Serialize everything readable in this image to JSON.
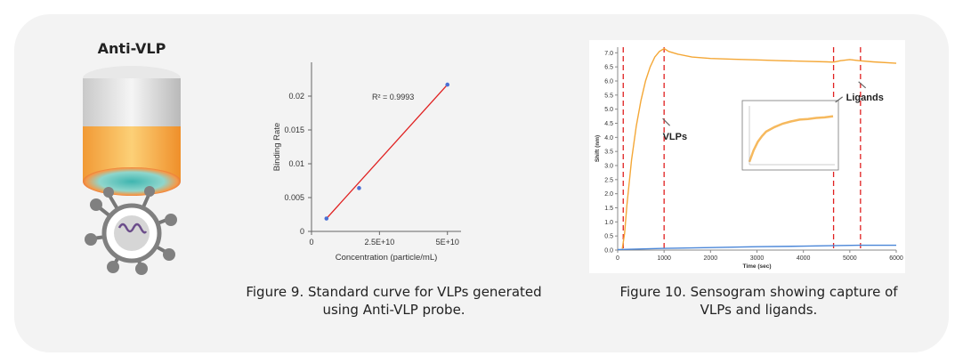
{
  "probe": {
    "title": "Anti-VLP"
  },
  "figure9": {
    "caption_line1": "Figure 9. Standard curve for VLPs generated",
    "caption_line2": "using Anti-VLP probe."
  },
  "figure10": {
    "caption_line1": "Figure 10. Sensogram showing capture of",
    "caption_line2": "VLPs and ligands."
  },
  "chart_data": [
    {
      "type": "scatter",
      "title": "",
      "xlabel": "Concentration (particle/mL)",
      "ylabel": "Binding Rate",
      "xlim": [
        0,
        55000000000
      ],
      "ylim": [
        0,
        0.025
      ],
      "x_ticks": [
        {
          "value": 0,
          "label": "0"
        },
        {
          "value": 25000000000,
          "label": "2.5E+10"
        },
        {
          "value": 50000000000,
          "label": "5E+10"
        }
      ],
      "y_ticks": [
        {
          "value": 0,
          "label": "0"
        },
        {
          "value": 0.005,
          "label": "0.005"
        },
        {
          "value": 0.01,
          "label": "0.01"
        },
        {
          "value": 0.015,
          "label": "0.015"
        },
        {
          "value": 0.02,
          "label": "0.02"
        }
      ],
      "points": [
        {
          "x": 5500000000,
          "y": 0.0019
        },
        {
          "x": 17500000000,
          "y": 0.0064
        },
        {
          "x": 50000000000,
          "y": 0.0217
        }
      ],
      "fit": {
        "x": [
          5500000000,
          50000000000
        ],
        "y": [
          0.0019,
          0.0217
        ],
        "color": "#e02020"
      },
      "annotation": "R² = 0.9993",
      "point_color": "#4a6fd4",
      "grid": false
    },
    {
      "type": "line",
      "title": "",
      "xlabel": "Time (sec)",
      "ylabel": "Shift (nm)",
      "xlim": [
        0,
        6000
      ],
      "ylim": [
        0,
        7.2
      ],
      "x_ticks": [
        {
          "value": 0,
          "label": "0"
        },
        {
          "value": 1000,
          "label": "1000"
        },
        {
          "value": 2000,
          "label": "2000"
        },
        {
          "value": 3000,
          "label": "3000"
        },
        {
          "value": 4000,
          "label": "4000"
        },
        {
          "value": 5000,
          "label": "5000"
        },
        {
          "value": 6000,
          "label": "6000"
        }
      ],
      "y_ticks": [
        {
          "value": 0,
          "label": "0.0"
        },
        {
          "value": 0.5,
          "label": "0.5"
        },
        {
          "value": 1,
          "label": "1.0"
        },
        {
          "value": 1.5,
          "label": "1.5"
        },
        {
          "value": 2,
          "label": "2.0"
        },
        {
          "value": 2.5,
          "label": "2.5"
        },
        {
          "value": 3,
          "label": "3.0"
        },
        {
          "value": 3.5,
          "label": "3.5"
        },
        {
          "value": 4,
          "label": "4.0"
        },
        {
          "value": 4.5,
          "label": "4.5"
        },
        {
          "value": 5,
          "label": "5.0"
        },
        {
          "value": 5.5,
          "label": "5.5"
        },
        {
          "value": 6,
          "label": "6.0"
        },
        {
          "value": 6.5,
          "label": "6.5"
        },
        {
          "value": 7,
          "label": "7.0"
        }
      ],
      "series": [
        {
          "color": "#f4a736",
          "x": [
            100,
            150,
            200,
            300,
            400,
            500,
            600,
            700,
            800,
            900,
            1000,
            1100,
            1300,
            1600,
            2000,
            2500,
            3000,
            3500,
            4000,
            4500,
            4650,
            4800,
            5000,
            5200,
            5500,
            6000
          ],
          "y": [
            0.05,
            0.6,
            1.6,
            3.2,
            4.4,
            5.3,
            6.0,
            6.5,
            6.85,
            7.05,
            7.15,
            7.05,
            6.95,
            6.85,
            6.8,
            6.77,
            6.75,
            6.72,
            6.7,
            6.68,
            6.67,
            6.72,
            6.76,
            6.72,
            6.68,
            6.63
          ]
        },
        {
          "color": "#4a86d8",
          "x": [
            0,
            1000,
            2000,
            3000,
            4000,
            4700,
            5200,
            6000
          ],
          "y": [
            0.02,
            0.06,
            0.09,
            0.12,
            0.14,
            0.16,
            0.17,
            0.17
          ]
        }
      ],
      "vlines": [
        120,
        1000,
        4650,
        5230
      ],
      "vline_color": "#e02020",
      "annotations": [
        {
          "text": "VLPs",
          "x": 1200,
          "y": 4.1
        },
        {
          "text": "Ligands",
          "x": 5150,
          "y": 5.5
        }
      ],
      "inset": {
        "x": [
          0,
          0.05,
          0.1,
          0.15,
          0.2,
          0.3,
          0.4,
          0.5,
          0.6,
          0.7,
          0.8,
          0.9,
          1.0
        ],
        "y": [
          0.05,
          0.25,
          0.4,
          0.5,
          0.58,
          0.66,
          0.72,
          0.76,
          0.79,
          0.8,
          0.82,
          0.83,
          0.85
        ],
        "color": "#f4a736"
      },
      "grid": false
    }
  ]
}
